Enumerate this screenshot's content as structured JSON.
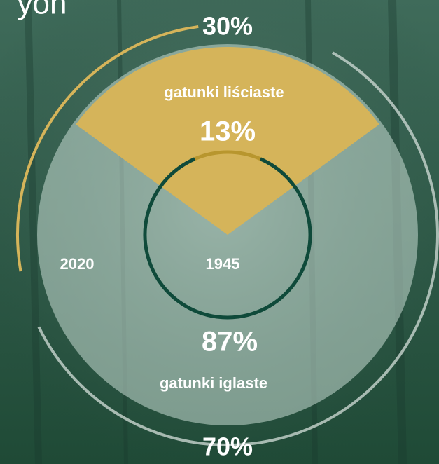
{
  "heading": "yon",
  "chart_data": {
    "type": "nested-pie",
    "categories": [
      "gatunki liściaste",
      "gatunki iglaste"
    ],
    "colors": [
      "#d5b45a",
      "#c9dcd4"
    ],
    "series": [
      {
        "name": "2020",
        "values": [
          30,
          70
        ],
        "value_labels": [
          "30%",
          "70%"
        ]
      },
      {
        "name": "1945",
        "values": [
          13,
          87
        ],
        "value_labels": [
          "13%",
          "87%"
        ]
      }
    ]
  }
}
